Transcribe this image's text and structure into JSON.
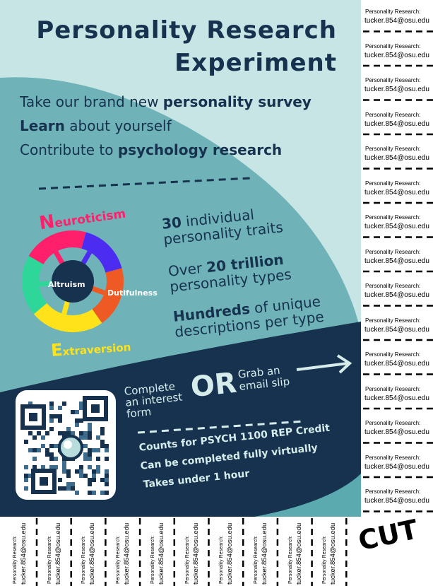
{
  "title": {
    "line1": "Personality Research",
    "line2": "Experiment"
  },
  "intro": [
    {
      "pre": "Take our brand new ",
      "bold": "personality survey",
      "post": ""
    },
    {
      "pre": "",
      "bold": "Learn",
      "post": " about yourself"
    },
    {
      "pre": "Contribute to ",
      "bold": "psychology research",
      "post": ""
    }
  ],
  "wheel": {
    "labels": {
      "neuroticism": {
        "initial": "N",
        "rest": "euroticism"
      },
      "extraversion": {
        "initial": "E",
        "rest": "xtraversion"
      },
      "altruism": "Altruism",
      "dutifulness": "Dutifulness"
    },
    "colors": [
      "#ff1f6b",
      "#4b2cf0",
      "#ef5a24",
      "#ffe21a",
      "#2fd69a"
    ]
  },
  "stats": [
    {
      "bold": "30",
      "rest1": " individual",
      "rest2": "personality traits"
    },
    {
      "pre": "Over ",
      "bold": "20 trillion",
      "rest2": "personality types"
    },
    {
      "bold": "Hundreds",
      "rest1": " of unique",
      "rest2": "descriptions per type"
    }
  ],
  "cta": {
    "complete": [
      "Complete",
      "an interest",
      "form"
    ],
    "or": "OR",
    "grab": [
      "Grab an",
      "email slip"
    ]
  },
  "bullets": [
    "Counts for PSYCH 1100 REP Credit",
    "Can be completed fully virtually",
    "Takes under 1 hour"
  ],
  "tearoff": {
    "label": "Personality Research:",
    "email": "tucker.854@osu.edu",
    "count_right": 15,
    "count_bottom": 10
  },
  "cut_label": "CUT",
  "colors": {
    "navy": "#16324f",
    "teal": "#7ab9bd",
    "mint": "#c7e5e4",
    "mid": "#5aaab0"
  }
}
